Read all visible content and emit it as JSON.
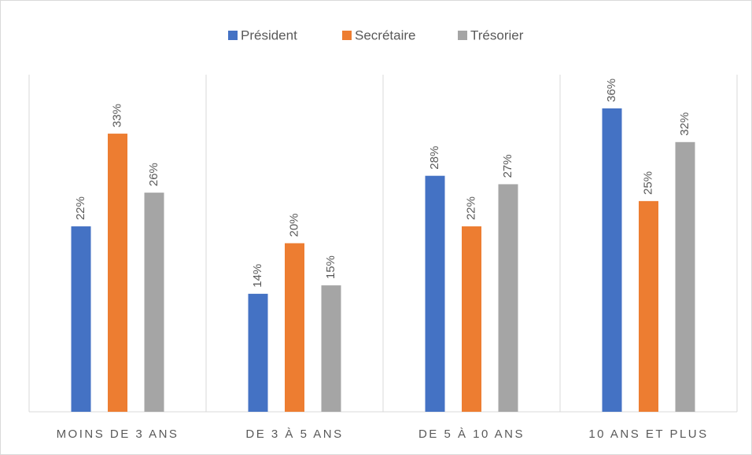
{
  "chart_data": {
    "type": "bar",
    "categories": [
      "MOINS DE 3 ANS",
      "DE 3 À 5 ANS",
      "DE 5 À 10 ANS",
      "10 ANS ET PLUS"
    ],
    "series": [
      {
        "name": "Président",
        "color": "#4472c4",
        "values": [
          22,
          14,
          28,
          36
        ],
        "value_labels": [
          "22%",
          "14%",
          "28%",
          "36%"
        ]
      },
      {
        "name": "Secrétaire",
        "color": "#ed7d31",
        "values": [
          33,
          20,
          22,
          25
        ],
        "value_labels": [
          "33%",
          "20%",
          "22%",
          "25%"
        ]
      },
      {
        "name": "Trésorier",
        "color": "#a5a5a5",
        "values": [
          26,
          15,
          27,
          32
        ],
        "value_labels": [
          "26%",
          "15%",
          "27%",
          "32%"
        ]
      }
    ],
    "ylim": [
      0,
      40
    ],
    "legend": "top"
  }
}
